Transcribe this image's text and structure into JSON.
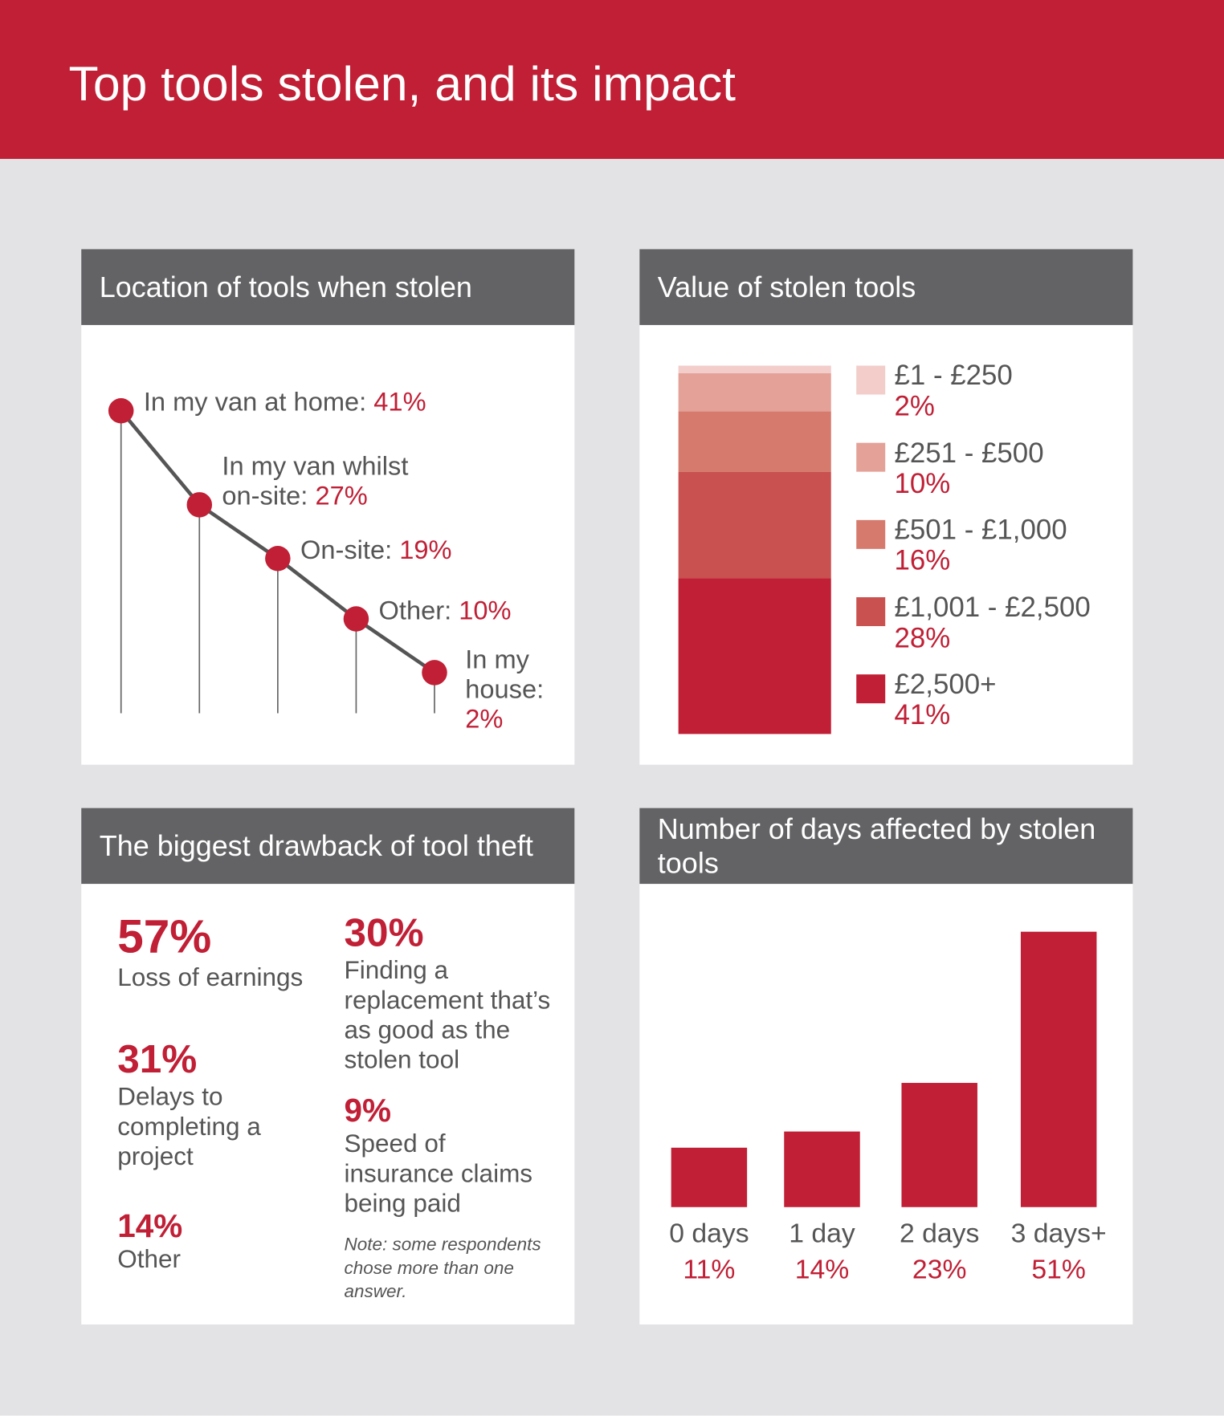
{
  "header": {
    "title": "Top tools stolen, and its impact"
  },
  "chart_data": [
    {
      "type": "line",
      "title": "Location of tools when stolen",
      "categories": [
        "In my van at home:",
        "In my van whilst on-site:",
        "On-site:",
        "Other:",
        "In my house:"
      ],
      "values": [
        41,
        27,
        19,
        10,
        2
      ],
      "value_labels": [
        "41%",
        "27%",
        "19%",
        "10%",
        "2%"
      ],
      "color": "#c01f35"
    },
    {
      "type": "stacked_bar",
      "title": "Value of stolen tools",
      "series": [
        {
          "name": "£1 - £250",
          "color": "#f2cdca",
          "values": [
            2
          ],
          "value_labels": [
            "2%"
          ]
        },
        {
          "name": "£251 - £500",
          "color": "#e4a198",
          "values": [
            10
          ],
          "value_labels": [
            "10%"
          ]
        },
        {
          "name": "£501 - £1,000",
          "color": "#d67a6e",
          "values": [
            16
          ],
          "value_labels": [
            "16%"
          ]
        },
        {
          "name": "£1,001 - £2,500",
          "color": "#c9514f",
          "values": [
            28
          ],
          "value_labels": [
            "28%"
          ]
        },
        {
          "name": "£2,500+",
          "color": "#c01f35",
          "values": [
            41
          ],
          "value_labels": [
            "41%"
          ]
        }
      ]
    },
    {
      "type": "bar",
      "title": "Number of days affected by stolen tools",
      "categories": [
        "0 days",
        "1 day",
        "2 days",
        "3 days+"
      ],
      "values": [
        11,
        14,
        23,
        51
      ],
      "value_labels": [
        "11%",
        "14%",
        "23%",
        "51%"
      ],
      "color": "#c01f35"
    }
  ],
  "drawbacks": {
    "title": "The biggest drawback of tool theft",
    "items": [
      {
        "figure": "57%",
        "text": "Loss of earnings"
      },
      {
        "figure": "31%",
        "text": "Delays to completing a project"
      },
      {
        "figure": "14%",
        "text": "Other"
      },
      {
        "figure": "30%",
        "text": "Finding a replacement that’s as good as the stolen tool"
      },
      {
        "figure": "9%",
        "text": "Speed of insurance claims being paid"
      }
    ],
    "note": "Note: some respondents chose more than one answer."
  }
}
